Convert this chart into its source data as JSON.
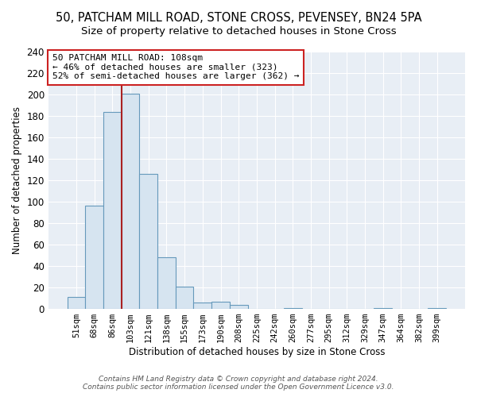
{
  "title": "50, PATCHAM MILL ROAD, STONE CROSS, PEVENSEY, BN24 5PA",
  "subtitle": "Size of property relative to detached houses in Stone Cross",
  "xlabel": "Distribution of detached houses by size in Stone Cross",
  "ylabel": "Number of detached properties",
  "bar_labels": [
    "51sqm",
    "68sqm",
    "86sqm",
    "103sqm",
    "121sqm",
    "138sqm",
    "155sqm",
    "173sqm",
    "190sqm",
    "208sqm",
    "225sqm",
    "242sqm",
    "260sqm",
    "277sqm",
    "295sqm",
    "312sqm",
    "329sqm",
    "347sqm",
    "364sqm",
    "382sqm",
    "399sqm"
  ],
  "bar_values": [
    11,
    96,
    184,
    201,
    126,
    48,
    21,
    6,
    7,
    4,
    0,
    0,
    1,
    0,
    0,
    0,
    0,
    1,
    0,
    0,
    1
  ],
  "bar_color": "#d6e4f0",
  "bar_edge_color": "#6699bb",
  "marker_line_color": "#aa2222",
  "annotation_title": "50 PATCHAM MILL ROAD: 108sqm",
  "annotation_line1": "← 46% of detached houses are smaller (323)",
  "annotation_line2": "52% of semi-detached houses are larger (362) →",
  "annotation_box_color": "white",
  "annotation_box_edge": "#cc2222",
  "footer_line1": "Contains HM Land Registry data © Crown copyright and database right 2024.",
  "footer_line2": "Contains public sector information licensed under the Open Government Licence v3.0.",
  "ylim": [
    0,
    240
  ],
  "yticks": [
    0,
    20,
    40,
    60,
    80,
    100,
    120,
    140,
    160,
    180,
    200,
    220,
    240
  ],
  "bg_color": "#ffffff",
  "plot_bg_color": "#e8eef5",
  "grid_color": "#ffffff",
  "title_fontsize": 10.5,
  "subtitle_fontsize": 9.5
}
